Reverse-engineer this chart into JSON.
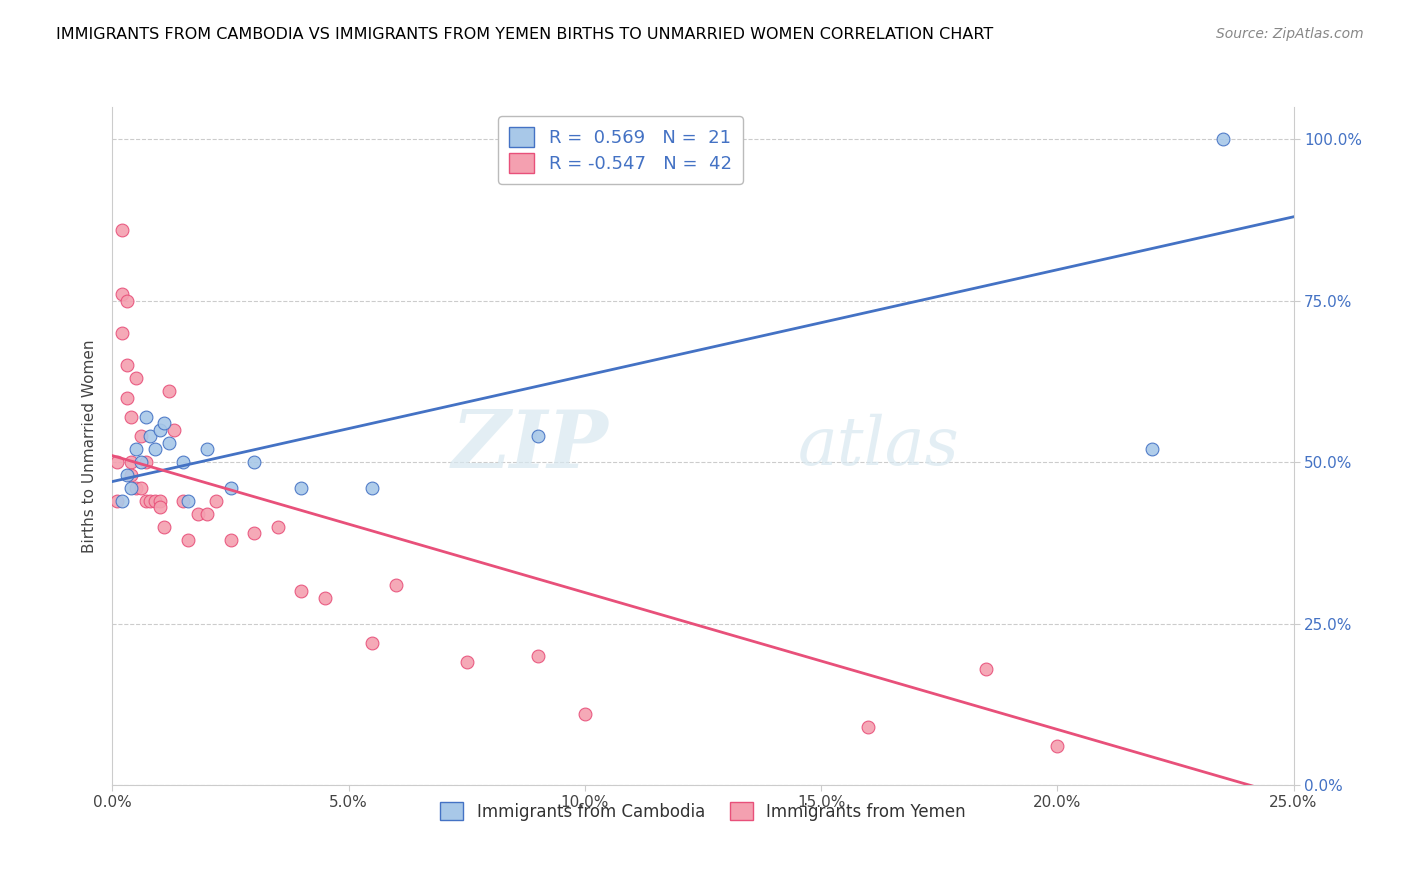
{
  "title": "IMMIGRANTS FROM CAMBODIA VS IMMIGRANTS FROM YEMEN BIRTHS TO UNMARRIED WOMEN CORRELATION CHART",
  "source": "Source: ZipAtlas.com",
  "ylabel_label": "Births to Unmarried Women",
  "legend_label1": "Immigrants from Cambodia",
  "legend_label2": "Immigrants from Yemen",
  "r1": 0.569,
  "n1": 21,
  "r2": -0.547,
  "n2": 42,
  "color_cambodia": "#a8c8e8",
  "color_yemen": "#f4a0b0",
  "line_color_cambodia": "#4472c4",
  "line_color_yemen": "#e8507a",
  "watermark_zip": "ZIP",
  "watermark_atlas": "atlas",
  "xmin": 0.0,
  "xmax": 0.25,
  "ymin": 0.0,
  "ymax": 1.05,
  "xtick_vals": [
    0.0,
    0.05,
    0.1,
    0.15,
    0.2,
    0.25
  ],
  "xtick_labels": [
    "0.0%",
    "5.0%",
    "10.0%",
    "15.0%",
    "20.0%",
    "25.0%"
  ],
  "ytick_vals": [
    0.0,
    0.25,
    0.5,
    0.75,
    1.0
  ],
  "ytick_labels": [
    "0.0%",
    "25.0%",
    "50.0%",
    "75.0%",
    "100.0%"
  ],
  "blue_line_x0": 0.0,
  "blue_line_y0": 0.47,
  "blue_line_x1": 0.25,
  "blue_line_y1": 0.88,
  "pink_line_x0": 0.0,
  "pink_line_y0": 0.51,
  "pink_line_x1": 0.25,
  "pink_line_y1": -0.02,
  "cambodia_x": [
    0.002,
    0.003,
    0.004,
    0.005,
    0.006,
    0.007,
    0.008,
    0.009,
    0.01,
    0.011,
    0.012,
    0.015,
    0.016,
    0.02,
    0.025,
    0.03,
    0.04,
    0.055,
    0.09,
    0.22,
    0.235
  ],
  "cambodia_y": [
    0.44,
    0.48,
    0.46,
    0.52,
    0.5,
    0.57,
    0.54,
    0.52,
    0.55,
    0.56,
    0.53,
    0.5,
    0.44,
    0.52,
    0.46,
    0.5,
    0.46,
    0.46,
    0.54,
    0.52,
    1.0
  ],
  "yemen_x": [
    0.001,
    0.001,
    0.002,
    0.002,
    0.002,
    0.003,
    0.003,
    0.003,
    0.004,
    0.004,
    0.004,
    0.005,
    0.005,
    0.006,
    0.006,
    0.007,
    0.007,
    0.008,
    0.009,
    0.01,
    0.01,
    0.011,
    0.012,
    0.013,
    0.015,
    0.016,
    0.018,
    0.02,
    0.022,
    0.025,
    0.03,
    0.035,
    0.04,
    0.045,
    0.055,
    0.06,
    0.075,
    0.09,
    0.1,
    0.16,
    0.185,
    0.2
  ],
  "yemen_y": [
    0.44,
    0.5,
    0.86,
    0.76,
    0.7,
    0.6,
    0.75,
    0.65,
    0.5,
    0.57,
    0.48,
    0.46,
    0.63,
    0.46,
    0.54,
    0.5,
    0.44,
    0.44,
    0.44,
    0.44,
    0.43,
    0.4,
    0.61,
    0.55,
    0.44,
    0.38,
    0.42,
    0.42,
    0.44,
    0.38,
    0.39,
    0.4,
    0.3,
    0.29,
    0.22,
    0.31,
    0.19,
    0.2,
    0.11,
    0.09,
    0.18,
    0.06
  ]
}
